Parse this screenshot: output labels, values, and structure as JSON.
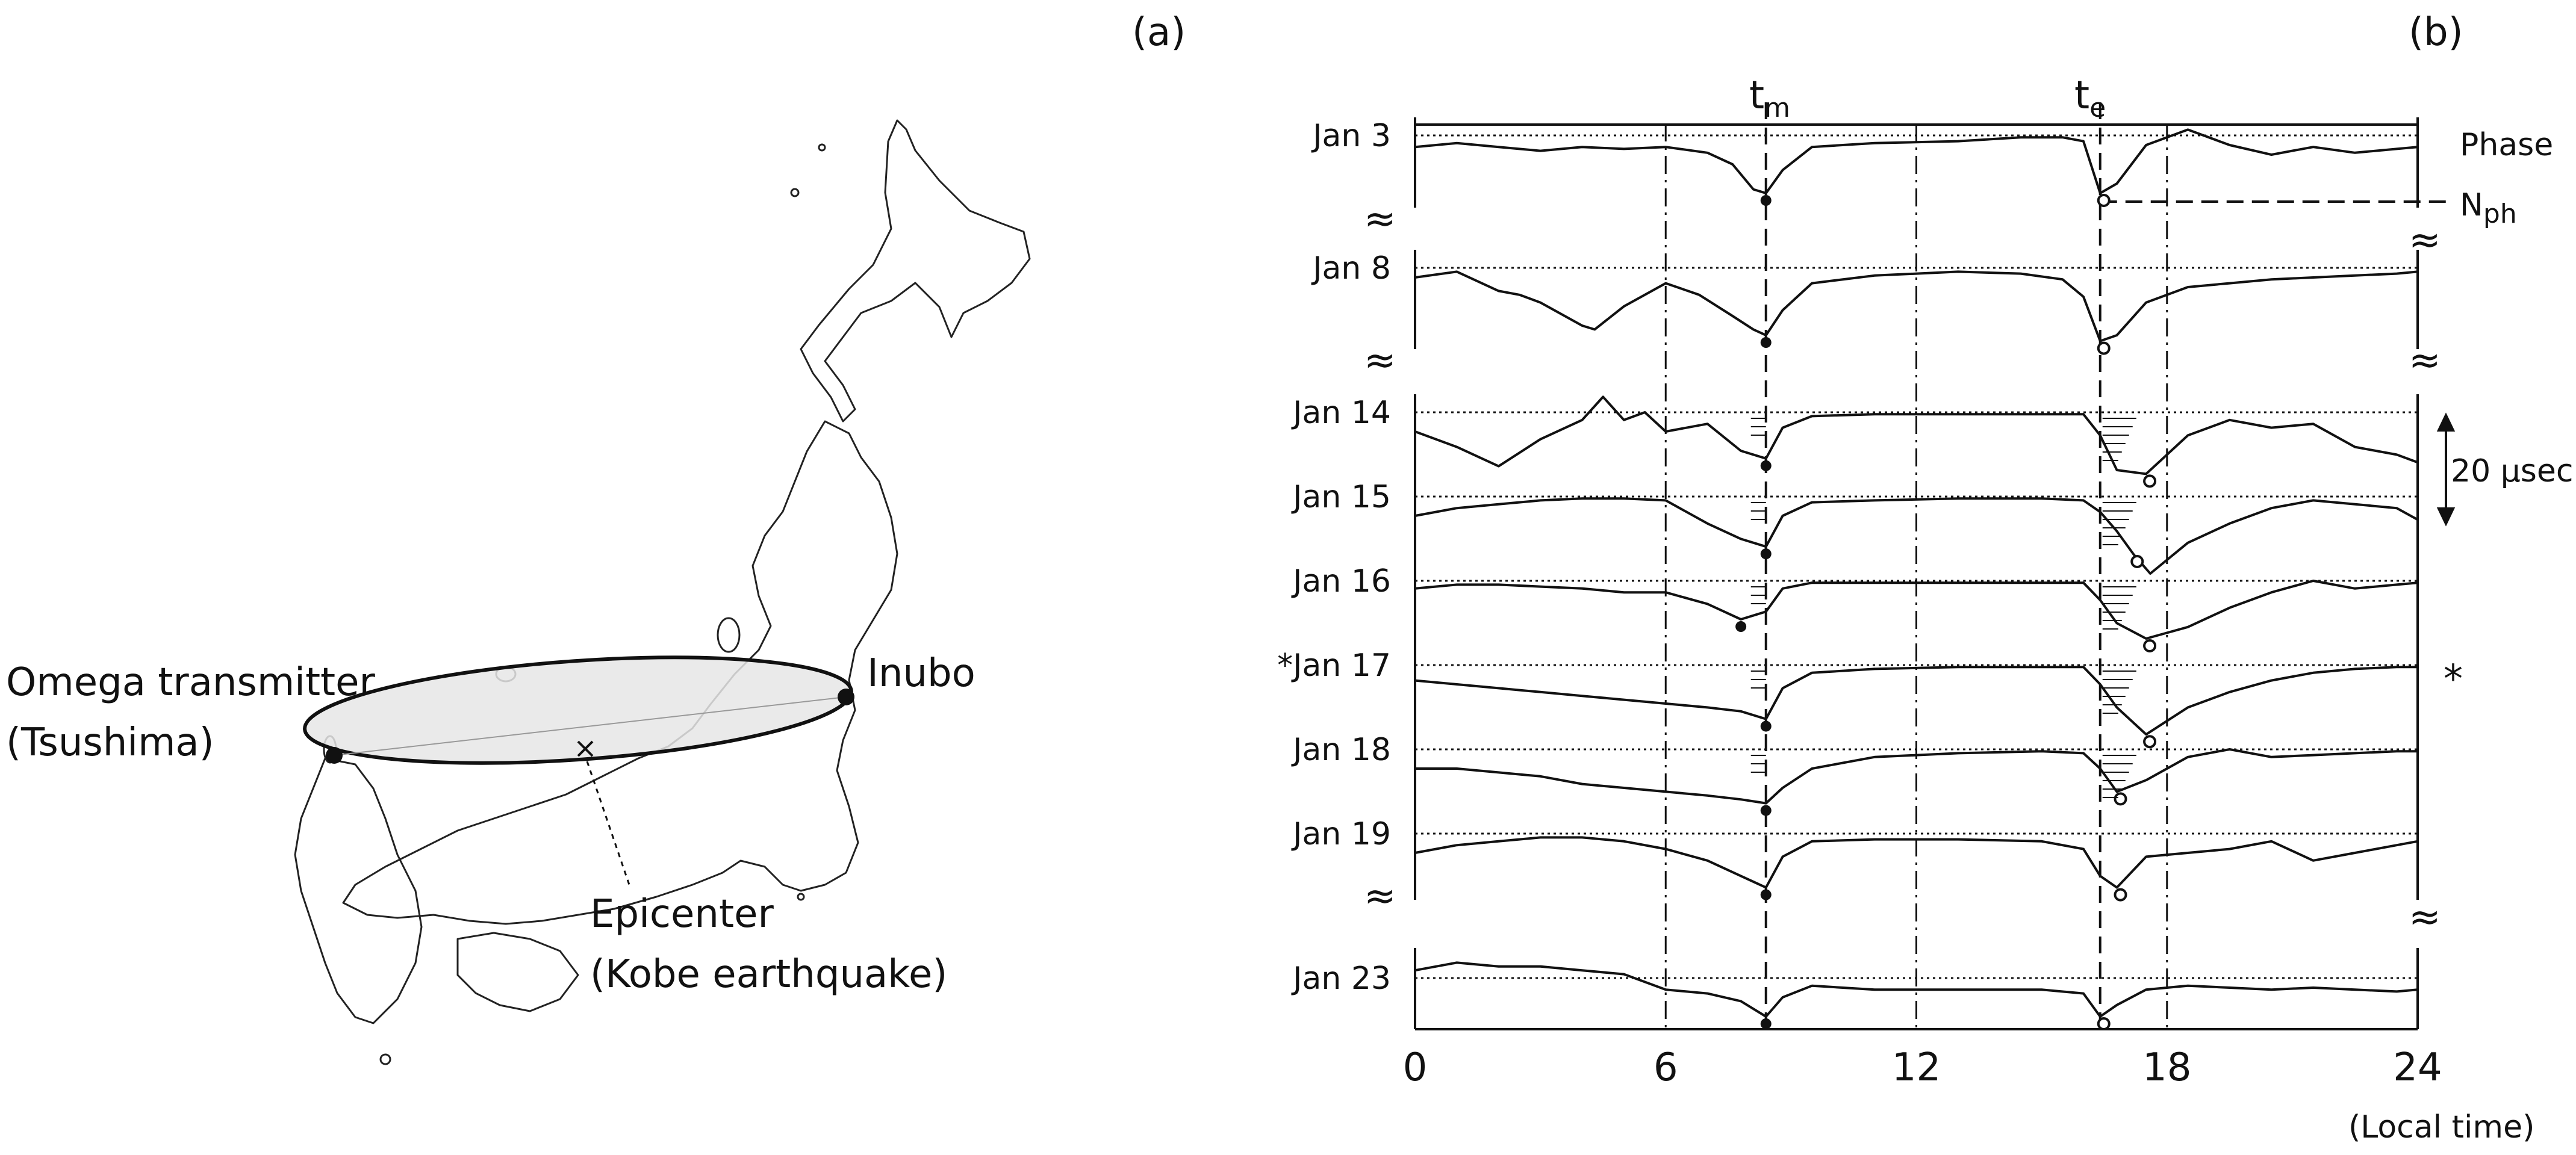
{
  "panel_a": {
    "label": "(a)",
    "transmitter_line1": "Omega transmitter",
    "transmitter_line2": "(Tsushima)",
    "receiver": "Inubo",
    "epicenter_line1": "Epicenter",
    "epicenter_line2": "(Kobe earthquake)"
  },
  "panel_b": {
    "label": "(b)",
    "tm_base": "t",
    "tm_sub": "m",
    "te_base": "t",
    "te_sub": "e",
    "phase": "Phase",
    "nph_base": "N",
    "nph_sub": "ph",
    "scale": "20 µsec",
    "asterisk": "*",
    "xunit": "(Local time)",
    "break_mark": "≈"
  },
  "chart_data": {
    "type": "line",
    "xlim": [
      0,
      24
    ],
    "xticks": [
      0,
      6,
      12,
      18,
      24
    ],
    "vertical_markers": {
      "t_m": 8.4,
      "t_e": 16.4
    },
    "scale_bar_usec": 20,
    "days": [
      {
        "label": "Jan  3",
        "starred": false
      },
      {
        "label": "Jan  8",
        "starred": false
      },
      {
        "label": "Jan 14",
        "starred": false
      },
      {
        "label": "Jan 15",
        "starred": false
      },
      {
        "label": "Jan 16",
        "starred": false
      },
      {
        "label": "*Jan 17",
        "starred": true
      },
      {
        "label": "Jan 18",
        "starred": false
      },
      {
        "label": "Jan 19",
        "starred": false
      },
      {
        "label": "Jan 23",
        "starred": false
      }
    ],
    "phase_series": [
      {
        "day": "Jan  3",
        "x": [
          0,
          1,
          2,
          3,
          4,
          5,
          6,
          7,
          7.6,
          8.1,
          8.4,
          8.8,
          9.5,
          11,
          13,
          14.5,
          15.5,
          16,
          16.4,
          16.8,
          17.5,
          18.5,
          19.5,
          20.5,
          21.5,
          22.5,
          23.5,
          24
        ],
        "y": [
          -6,
          -4,
          -6,
          -8,
          -6,
          -7,
          -6,
          -9,
          -15,
          -28,
          -30,
          -18,
          -6,
          -4,
          -3,
          -1,
          -1,
          -3,
          -30,
          -25,
          -5,
          3,
          -5,
          -10,
          -6,
          -9,
          -7,
          -6
        ]
      },
      {
        "day": "Jan  8",
        "x": [
          0,
          1,
          2,
          2.5,
          3,
          4,
          4.3,
          5,
          6,
          6.8,
          7.6,
          8.1,
          8.4,
          8.8,
          9.5,
          11,
          13,
          14.5,
          15.5,
          16,
          16.4,
          16.8,
          17.5,
          18.5,
          19.5,
          20.5,
          21.5,
          22.5,
          23.5,
          24
        ],
        "y": [
          -5,
          -2,
          -12,
          -14,
          -18,
          -30,
          -32,
          -20,
          -8,
          -14,
          -25,
          -32,
          -35,
          -22,
          -8,
          -4,
          -2,
          -3,
          -6,
          -15,
          -38,
          -35,
          -18,
          -10,
          -8,
          -6,
          -5,
          -4,
          -3,
          -2
        ]
      },
      {
        "day": "Jan 14",
        "x": [
          0,
          1,
          2,
          3,
          4,
          4.5,
          5,
          5.5,
          6,
          7,
          7.8,
          8.4,
          8.8,
          9.5,
          11,
          13,
          15,
          16,
          16.4,
          16.8,
          17.5,
          18.5,
          19.5,
          20.5,
          21.5,
          22.5,
          23.5,
          24
        ],
        "y": [
          -10,
          -18,
          -28,
          -14,
          -4,
          8,
          -4,
          0,
          -10,
          -6,
          -20,
          -24,
          -8,
          -2,
          -1,
          -1,
          -1,
          -1,
          -12,
          -30,
          -32,
          -12,
          -4,
          -8,
          -6,
          -18,
          -22,
          -26
        ]
      },
      {
        "day": "Jan 15",
        "x": [
          0,
          1,
          2,
          3,
          4,
          5,
          6,
          7,
          7.8,
          8.4,
          8.8,
          9.5,
          11,
          13,
          15,
          16,
          16.4,
          16.8,
          17.2,
          17.6,
          18.5,
          19.5,
          20.5,
          21.5,
          22.5,
          23.5,
          24
        ],
        "y": [
          -10,
          -6,
          -4,
          -2,
          -1,
          -1,
          -2,
          -14,
          -22,
          -26,
          -10,
          -3,
          -2,
          -1,
          -1,
          -2,
          -8,
          -18,
          -30,
          -40,
          -24,
          -14,
          -6,
          -2,
          -4,
          -6,
          -12
        ]
      },
      {
        "day": "Jan 16",
        "x": [
          0,
          1,
          2,
          3,
          4,
          5,
          6,
          7,
          7.8,
          8.4,
          8.8,
          9.5,
          11,
          13,
          15,
          16,
          16.4,
          16.8,
          17.5,
          18.5,
          19.5,
          20.5,
          21.5,
          22.5,
          23.5,
          24
        ],
        "y": [
          -4,
          -2,
          -2,
          -3,
          -4,
          -6,
          -6,
          -12,
          -20,
          -16,
          -4,
          -1,
          -1,
          -1,
          -1,
          -1,
          -10,
          -22,
          -30,
          -24,
          -14,
          -6,
          0,
          -4,
          -2,
          -1
        ]
      },
      {
        "day": "*Jan 17",
        "x": [
          0,
          1,
          2,
          3,
          4,
          5,
          6,
          7,
          7.8,
          8.4,
          8.8,
          9.5,
          11,
          13,
          15,
          16,
          16.4,
          16.8,
          17.5,
          18.5,
          19.5,
          20.5,
          21.5,
          22.5,
          23.5,
          24
        ],
        "y": [
          -8,
          -10,
          -12,
          -14,
          -16,
          -18,
          -20,
          -22,
          -24,
          -28,
          -12,
          -4,
          -2,
          -1,
          -1,
          -1,
          -10,
          -22,
          -36,
          -22,
          -14,
          -8,
          -4,
          -2,
          -1,
          -1
        ]
      },
      {
        "day": "Jan 18",
        "x": [
          0,
          1,
          2,
          3,
          4,
          5,
          6,
          7,
          7.8,
          8.4,
          8.8,
          9.5,
          11,
          13,
          15,
          16,
          16.4,
          16.8,
          17.5,
          18.5,
          19.5,
          20.5,
          21.5,
          22.5,
          23.5,
          24
        ],
        "y": [
          -10,
          -10,
          -12,
          -14,
          -18,
          -20,
          -22,
          -24,
          -26,
          -28,
          -20,
          -10,
          -4,
          -2,
          -1,
          -2,
          -10,
          -22,
          -16,
          -4,
          0,
          -4,
          -3,
          -2,
          -1,
          -1
        ]
      },
      {
        "day": "Jan 19",
        "x": [
          0,
          1,
          2,
          3,
          4,
          5,
          6,
          7,
          7.8,
          8.4,
          8.8,
          9.5,
          11,
          13,
          15,
          16,
          16.4,
          16.8,
          17.5,
          18.5,
          19.5,
          20.5,
          21.5,
          22.5,
          23.5,
          24
        ],
        "y": [
          -10,
          -6,
          -4,
          -2,
          -2,
          -4,
          -8,
          -14,
          -22,
          -28,
          -12,
          -4,
          -3,
          -3,
          -4,
          -8,
          -22,
          -28,
          -12,
          -10,
          -8,
          -4,
          -14,
          -10,
          -6,
          -4
        ]
      },
      {
        "day": "Jan 23",
        "x": [
          0,
          1,
          2,
          3,
          4,
          5,
          6,
          7,
          7.8,
          8.4,
          8.8,
          9.5,
          11,
          13,
          15,
          16,
          16.4,
          16.8,
          17.5,
          18.5,
          19.5,
          20.5,
          21.5,
          22.5,
          23.5,
          24
        ],
        "y": [
          4,
          8,
          6,
          6,
          4,
          2,
          -6,
          -8,
          -12,
          -20,
          -10,
          -4,
          -6,
          -6,
          -6,
          -8,
          -20,
          -14,
          -6,
          -4,
          -5,
          -6,
          -5,
          -6,
          -7,
          -6
        ]
      }
    ]
  }
}
